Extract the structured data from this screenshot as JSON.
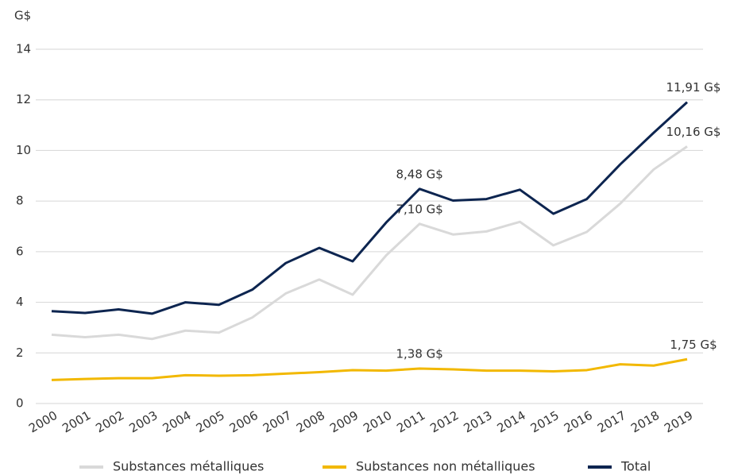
{
  "chart_data": {
    "type": "line",
    "y_label": "G$",
    "x": [
      "2000",
      "2001",
      "2002",
      "2003",
      "2004",
      "2005",
      "2006",
      "2007",
      "2008",
      "2009",
      "2010",
      "2011",
      "2012",
      "2013",
      "2014",
      "2015",
      "2016",
      "2017",
      "2018",
      "2019"
    ],
    "series": [
      {
        "name": "Substances métalliques",
        "color": "#d9d9d9",
        "values": [
          2.72,
          2.62,
          2.72,
          2.55,
          2.88,
          2.8,
          3.4,
          4.35,
          4.9,
          4.3,
          5.85,
          7.1,
          6.68,
          6.8,
          7.18,
          6.25,
          6.78,
          7.9,
          9.25,
          10.16
        ],
        "value_labels": [
          null,
          null,
          null,
          null,
          null,
          null,
          null,
          null,
          null,
          null,
          null,
          "7,10 G$",
          null,
          null,
          null,
          null,
          null,
          null,
          null,
          "10,16 G$"
        ]
      },
      {
        "name": "Substances non métalliques",
        "color": "#f2b800",
        "values": [
          0.93,
          0.97,
          1.0,
          1.0,
          1.12,
          1.1,
          1.12,
          1.18,
          1.24,
          1.32,
          1.3,
          1.38,
          1.35,
          1.3,
          1.3,
          1.27,
          1.32,
          1.55,
          1.5,
          1.75
        ],
        "value_labels": [
          null,
          null,
          null,
          null,
          null,
          null,
          null,
          null,
          null,
          null,
          null,
          "1,38 G$",
          null,
          null,
          null,
          null,
          null,
          null,
          null,
          "1,75 G$"
        ]
      },
      {
        "name": "Total",
        "color": "#0d2550",
        "values": [
          3.65,
          3.58,
          3.72,
          3.55,
          4.0,
          3.9,
          4.5,
          5.55,
          6.15,
          5.62,
          7.15,
          8.48,
          8.02,
          8.08,
          8.45,
          7.5,
          8.08,
          9.45,
          10.7,
          11.91
        ],
        "value_labels": [
          null,
          null,
          null,
          null,
          null,
          null,
          null,
          null,
          null,
          null,
          null,
          "8,48 G$",
          null,
          null,
          null,
          null,
          null,
          null,
          null,
          "11,91 G$"
        ]
      }
    ],
    "ylim": [
      0,
      14
    ],
    "yticks": [
      0,
      2,
      4,
      6,
      8,
      10,
      12,
      14
    ],
    "grid": true,
    "legend": "bottom"
  }
}
